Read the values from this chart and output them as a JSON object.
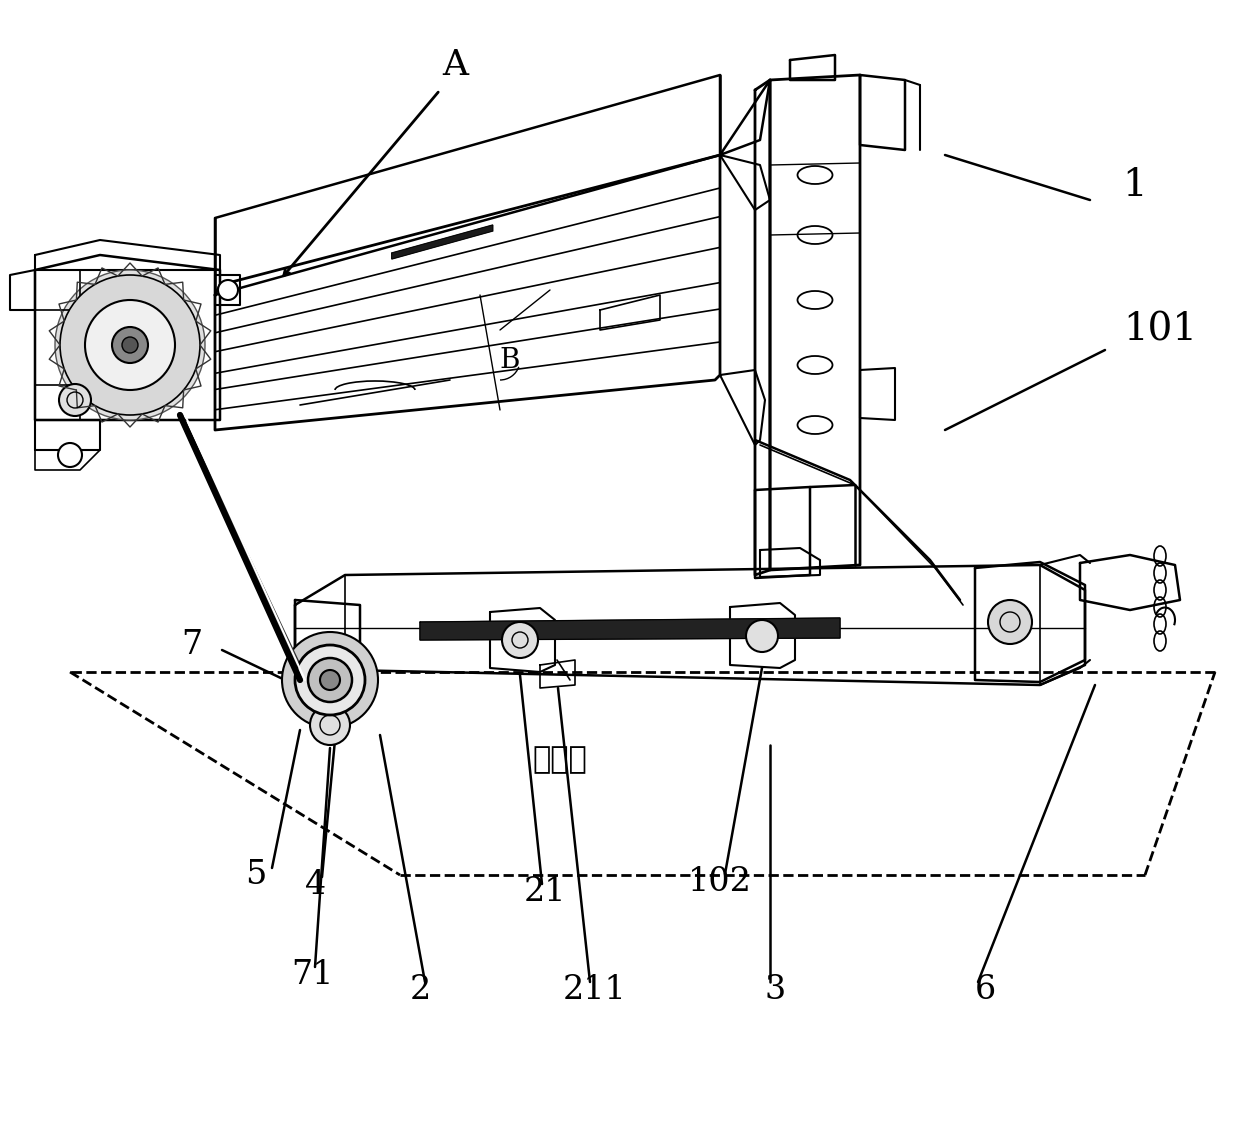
{
  "bg_color": "#ffffff",
  "label_A": "A",
  "label_B": "B",
  "label_1": "1",
  "label_101": "101",
  "label_2": "2",
  "label_21": "21",
  "label_211": "211",
  "label_3": "3",
  "label_4": "4",
  "label_5": "5",
  "label_6": "6",
  "label_7": "7",
  "label_71": "71",
  "label_102": "102",
  "label_shuiping": "水平面",
  "figsize": [
    12.4,
    11.44
  ],
  "dpi": 100
}
